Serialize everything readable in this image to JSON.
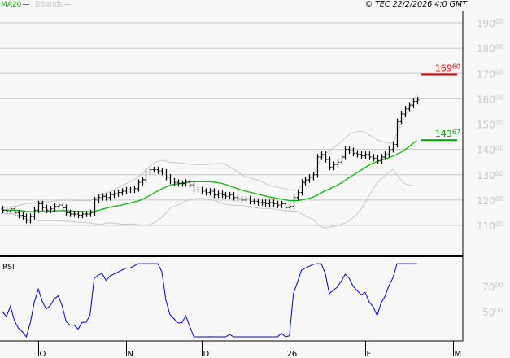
{
  "header": {
    "legend": [
      {
        "label": "MA20",
        "color": "#00bb00"
      },
      {
        "label": "BBands",
        "color": "#c8c8c8"
      }
    ],
    "copyright": "© TEC 22/2/2026 4:0 GMT"
  },
  "chart_data": [
    {
      "type": "ohlc",
      "ylim": [
        105,
        195
      ],
      "y_ticks": [
        {
          "main": "190",
          "dec": "00",
          "value": 190
        },
        {
          "main": "180",
          "dec": "00",
          "value": 180
        },
        {
          "main": "170",
          "dec": "00",
          "value": 170
        },
        {
          "main": "160",
          "dec": "00",
          "value": 160
        },
        {
          "main": "150",
          "dec": "00",
          "value": 150
        },
        {
          "main": "140",
          "dec": "00",
          "value": 140
        },
        {
          "main": "130",
          "dec": "00",
          "value": 130
        },
        {
          "main": "120",
          "dec": "00",
          "value": 120
        },
        {
          "main": "110",
          "dec": "00",
          "value": 110
        }
      ],
      "grid": true,
      "close": [
        116,
        115.5,
        116.5,
        115,
        114,
        113.5,
        112,
        113.5,
        116,
        118.5,
        117,
        116,
        116.5,
        117.5,
        118,
        117,
        115,
        114.5,
        114.5,
        114,
        114.5,
        114.5,
        115,
        120,
        121,
        121.5,
        121,
        122,
        122.5,
        123,
        123.5,
        124,
        124,
        124.5,
        127,
        128,
        131,
        132,
        132,
        131.5,
        131,
        129,
        127.5,
        127,
        126.5,
        126.5,
        127,
        126,
        124,
        124,
        123.5,
        123,
        123.5,
        122,
        122.5,
        122,
        121.5,
        122,
        121,
        120.5,
        120,
        120.5,
        119.5,
        119.5,
        119,
        119,
        118.5,
        119,
        118.5,
        118,
        118.5,
        117,
        117.5,
        121,
        123,
        127,
        128,
        129,
        130,
        137,
        138,
        136,
        133,
        134,
        135,
        137,
        140,
        139.5,
        138.5,
        138,
        137.5,
        138,
        137,
        136.5,
        135.5,
        137,
        138,
        140,
        142,
        151,
        154,
        156,
        157.5,
        159,
        159.5
      ],
      "indicators": [
        {
          "name": "MA20",
          "color": "#00bb00"
        },
        {
          "name": "BBands",
          "color": "#c8c8c8"
        }
      ],
      "levels": [
        {
          "main": "169",
          "dec": "60",
          "value": 169.6,
          "color": "#dd0000"
        },
        {
          "main": "143",
          "dec": "67",
          "value": 143.67,
          "color": "#00a000"
        }
      ]
    },
    {
      "type": "line",
      "title": "RSI",
      "series_color": "#0000dd",
      "y_ticks": [
        {
          "main": "70",
          "dec": "00",
          "value": 70
        },
        {
          "main": "50",
          "dec": "00",
          "value": 50
        }
      ]
    }
  ],
  "x_axis": {
    "ticks": [
      {
        "label": "O",
        "bar": 9
      },
      {
        "label": "N",
        "bar": 31
      },
      {
        "label": "D",
        "bar": 50
      },
      {
        "label": "26",
        "bar": 71
      },
      {
        "label": "F",
        "bar": 91
      },
      {
        "label": "M",
        "bar": 113
      }
    ]
  }
}
